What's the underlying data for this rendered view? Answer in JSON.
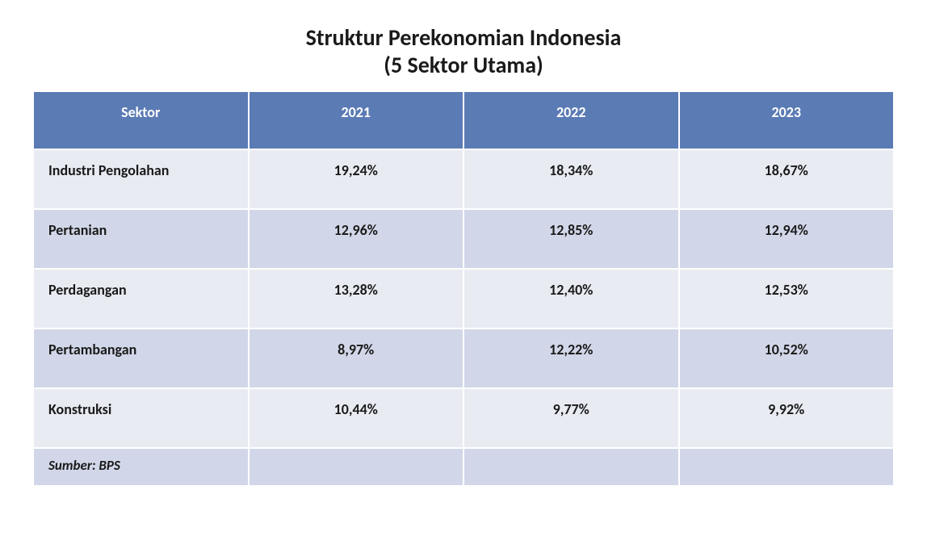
{
  "title": {
    "line1": "Struktur Perekonomian Indonesia",
    "line2": "(5 Sektor Utama)"
  },
  "table": {
    "type": "table",
    "header_bg_color": "#5b7bb5",
    "header_text_color": "#ffffff",
    "row_odd_bg": "#e8ebf2",
    "row_even_bg": "#d1d7e8",
    "text_color": "#1a1a1a",
    "header_fontsize": 18,
    "cell_fontsize": 18,
    "columns": [
      "Sektor",
      "2021",
      "2022",
      "2023"
    ],
    "column_widths": [
      "25%",
      "25%",
      "25%",
      "25%"
    ],
    "rows": [
      {
        "sector": "Industri Pengolahan",
        "y2021": "19,24%",
        "y2022": "18,34%",
        "y2023": "18,67%"
      },
      {
        "sector": "Pertanian",
        "y2021": "12,96%",
        "y2022": "12,85%",
        "y2023": "12,94%"
      },
      {
        "sector": "Perdagangan",
        "y2021": "13,28%",
        "y2022": "12,40%",
        "y2023": "12,53%"
      },
      {
        "sector": "Pertambangan",
        "y2021": "8,97%",
        "y2022": "12,22%",
        "y2023": "10,52%"
      },
      {
        "sector": "Konstruksi",
        "y2021": "10,44%",
        "y2022": "9,77%",
        "y2023": "9,92%"
      }
    ],
    "source_label": "Sumber: BPS"
  }
}
